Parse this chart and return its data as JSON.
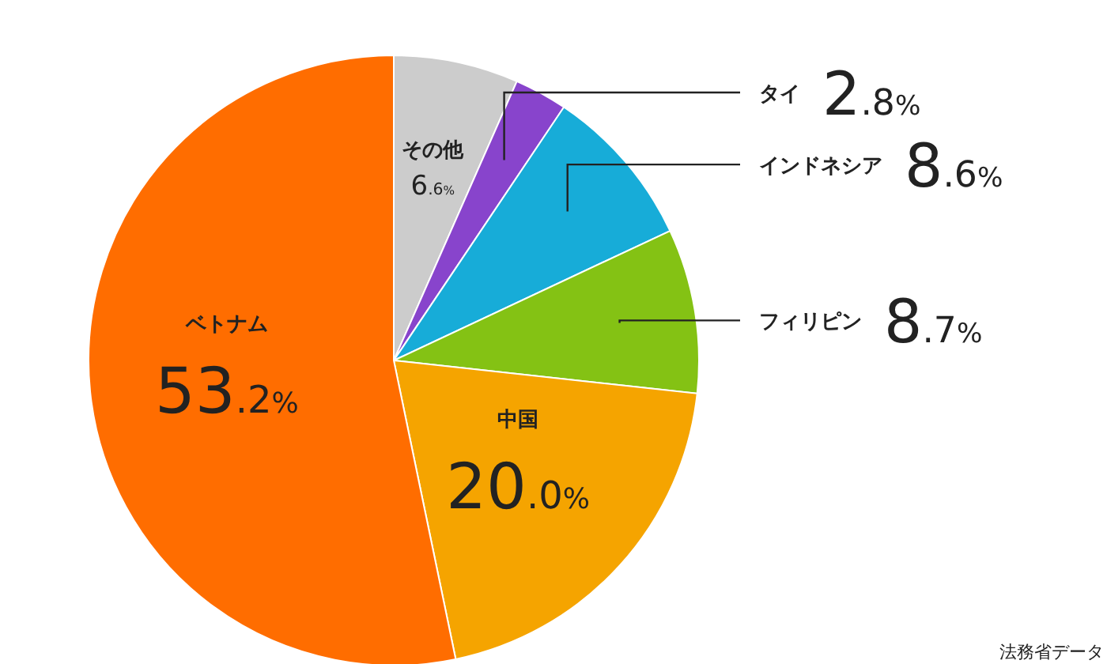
{
  "chart_data": {
    "type": "pie",
    "categories": [
      "その他",
      "タイ",
      "インドネシア",
      "フィリピン",
      "中国",
      "ベトナム"
    ],
    "values": [
      6.6,
      2.8,
      8.6,
      8.7,
      20.0,
      53.2
    ],
    "colors": [
      "#cccccc",
      "#8844cc",
      "#17acd8",
      "#84c214",
      "#f5a400",
      "#ff6d00"
    ],
    "value_labels": [
      "6.6%",
      "2.8%",
      "8.6%",
      "8.7%",
      "20.0%",
      "53.2%"
    ],
    "annotations": [
      "法務省データ"
    ]
  }
}
